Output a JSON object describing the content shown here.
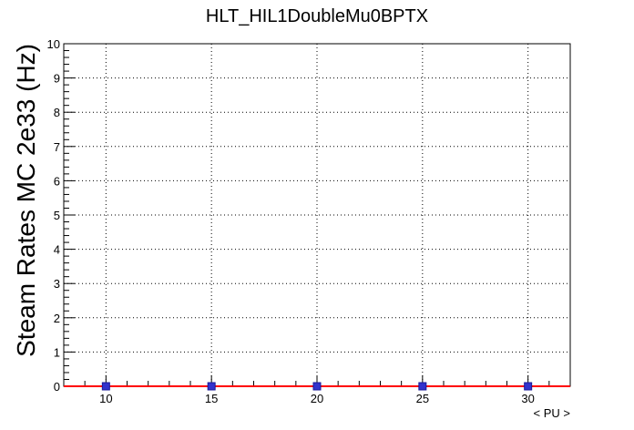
{
  "chart_data": {
    "type": "scatter",
    "title": "HLT_HIL1DoubleMu0BPTX",
    "xlabel": "< PU >",
    "ylabel": "Steam Rates MC 2e33 (Hz)",
    "xlim": [
      8,
      32
    ],
    "ylim": [
      0,
      10
    ],
    "x_ticks": [
      10,
      15,
      20,
      25,
      30
    ],
    "y_ticks": [
      0,
      1,
      2,
      3,
      4,
      5,
      6,
      7,
      8,
      9,
      10
    ],
    "grid": true,
    "series": [
      {
        "points": [
          {
            "x": 10,
            "y": 0
          },
          {
            "x": 15,
            "y": 0
          },
          {
            "x": 20,
            "y": 0
          },
          {
            "x": 25,
            "y": 0
          },
          {
            "x": 30,
            "y": 0
          }
        ],
        "marker_color": "#3333cc",
        "fit_color": "#ff0000"
      }
    ]
  }
}
